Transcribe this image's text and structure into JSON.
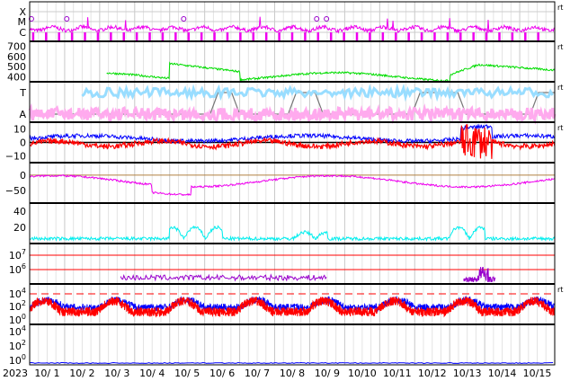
{
  "chart_data": {
    "type": "line",
    "start_label": "2023",
    "dates": [
      "10/ 1",
      "10/ 2",
      "10/ 3",
      "10/ 4",
      "10/ 5",
      "10/ 6",
      "10/ 7",
      "10/ 8",
      "10/ 9",
      "10/10",
      "10/11",
      "10/12",
      "10/13",
      "10/14",
      "10/15"
    ],
    "grid": true,
    "colors": {
      "magenta": "#ee00ee",
      "green": "#00dd00",
      "lightblue": "#99ddff",
      "pink": "#ffaaee",
      "blue": "#0000ff",
      "red": "#ff0000",
      "cyan": "#00eeee",
      "purple": "#9900cc",
      "gray": "#777777",
      "black": "#000000"
    },
    "panels": [
      {
        "id": "xray",
        "yticks": [
          "X",
          "M",
          "C"
        ],
        "right_label": "rt",
        "events_x": [
          0.05,
          1.06,
          4.4,
          8.2,
          8.48
        ]
      },
      {
        "id": "wind_speed",
        "yticks": [
          "700",
          "600",
          "500",
          "400"
        ],
        "ylim": [
          350,
          750
        ],
        "right_label": "rt"
      },
      {
        "id": "ta",
        "yticks": [
          "T",
          "A"
        ],
        "right_label": "rt"
      },
      {
        "id": "bfield",
        "yticks": [
          "10",
          "0",
          "−10"
        ],
        "ylim": [
          -15,
          15
        ],
        "right_label": "rt"
      },
      {
        "id": "theta",
        "yticks": [
          "0",
          "−50"
        ],
        "ylim": [
          -90,
          40
        ]
      },
      {
        "id": "density",
        "yticks": [
          "40",
          "20"
        ],
        "ylim": [
          0,
          50
        ]
      },
      {
        "id": "proton_flux",
        "yticks": [
          "10^7",
          "10^6"
        ]
      },
      {
        "id": "electron",
        "yticks": [
          "10^4",
          "10^2",
          "10^0"
        ],
        "right_label": "rt"
      },
      {
        "id": "neutron",
        "yticks": [
          "10^4",
          "10^2",
          "10^0"
        ]
      }
    ]
  }
}
